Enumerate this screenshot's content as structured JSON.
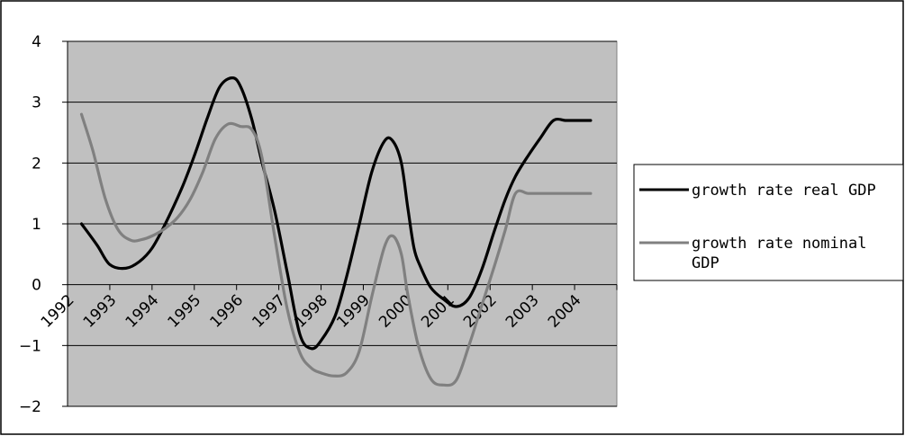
{
  "chart_data": {
    "type": "line",
    "title": "",
    "xlabel": "",
    "ylabel": "",
    "x_tick_labels": [
      "1992",
      "1993",
      "1994",
      "1995",
      "1996",
      "1997",
      "1998",
      "1999",
      "2000",
      "2001",
      "2002",
      "2003",
      "2004"
    ],
    "ylim": [
      -2,
      4
    ],
    "y_ticks": [
      4,
      3,
      2,
      1,
      0,
      -1,
      -2
    ],
    "xlim": [
      1992,
      2005
    ],
    "grid": "horizontal",
    "legend_position": "right",
    "plot_background": "#c0c0c0",
    "series": [
      {
        "name": "growth rate real GDP",
        "color": "#000000",
        "x": [
          1992.33,
          1992.7,
          1993.0,
          1993.38,
          1993.7,
          1994.0,
          1994.3,
          1994.7,
          1995.0,
          1995.3,
          1995.6,
          1995.9,
          1996.1,
          1996.36,
          1996.6,
          1996.9,
          1997.2,
          1997.5,
          1997.77,
          1998.0,
          1998.33,
          1998.6,
          1998.9,
          1999.2,
          1999.5,
          1999.7,
          1999.9,
          2000.05,
          2000.2,
          2000.35,
          2000.6,
          2000.9,
          2001.2,
          2001.5,
          2001.8,
          2002.1,
          2002.36,
          2002.6,
          2002.9,
          2003.2,
          2003.5,
          2003.8,
          2004.1,
          2004.38
        ],
        "values": [
          1.0,
          0.65,
          0.33,
          0.27,
          0.38,
          0.6,
          0.98,
          1.58,
          2.12,
          2.72,
          3.25,
          3.4,
          3.25,
          2.72,
          2.02,
          1.22,
          0.2,
          -0.82,
          -1.05,
          -0.92,
          -0.52,
          0.12,
          0.98,
          1.85,
          2.36,
          2.36,
          2.0,
          1.28,
          0.6,
          0.3,
          -0.05,
          -0.24,
          -0.36,
          -0.22,
          0.24,
          0.88,
          1.4,
          1.78,
          2.12,
          2.42,
          2.7,
          2.7,
          2.7,
          2.7
        ]
      },
      {
        "name": "growth rate nominal GDP",
        "color": "#808080",
        "x": [
          1992.33,
          1992.6,
          1992.9,
          1993.2,
          1993.5,
          1993.75,
          1994.0,
          1994.3,
          1994.6,
          1994.9,
          1995.2,
          1995.5,
          1995.8,
          1996.1,
          1996.36,
          1996.6,
          1996.9,
          1997.2,
          1997.5,
          1997.77,
          1998.0,
          1998.3,
          1998.6,
          1998.9,
          1999.2,
          1999.5,
          1999.7,
          1999.9,
          2000.05,
          2000.3,
          2000.6,
          2000.9,
          2001.2,
          2001.5,
          2001.8,
          2002.1,
          2002.36,
          2002.6,
          2002.9,
          2003.2,
          2003.5,
          2003.8,
          2004.1,
          2004.38
        ],
        "values": [
          2.8,
          2.2,
          1.4,
          0.9,
          0.73,
          0.74,
          0.8,
          0.92,
          1.1,
          1.4,
          1.85,
          2.4,
          2.64,
          2.6,
          2.55,
          2.1,
          0.8,
          -0.4,
          -1.12,
          -1.37,
          -1.45,
          -1.5,
          -1.45,
          -1.1,
          -0.2,
          0.62,
          0.8,
          0.5,
          -0.15,
          -1.0,
          -1.55,
          -1.65,
          -1.57,
          -1.0,
          -0.35,
          0.3,
          0.9,
          1.5,
          1.5,
          1.5,
          1.5,
          1.5,
          1.5,
          1.5
        ]
      }
    ]
  }
}
